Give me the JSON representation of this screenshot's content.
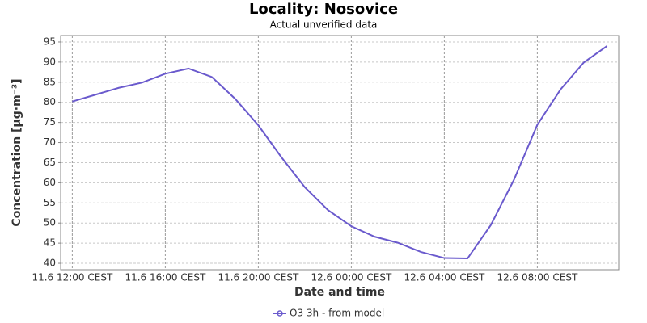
{
  "chart_data": {
    "type": "line",
    "title": "Locality: Nosovice",
    "subtitle": "Actual unverified data",
    "x_label": "Date and time",
    "y_label": "Concentration [µg·m⁻³]",
    "categories": [
      "11.6 12:00 CEST",
      null,
      null,
      null,
      "11.6 16:00 CEST",
      null,
      null,
      null,
      "11.6 20:00 CEST",
      null,
      null,
      null,
      "12.6 00:00 CEST",
      null,
      null,
      null,
      "12.6 04:00 CEST",
      null,
      null,
      null,
      "12.6 08:00 CEST",
      null,
      null,
      null
    ],
    "series": [
      {
        "name": "O3 3h - from model",
        "color": "#6a5acd",
        "values": [
          80.2,
          81.9,
          83.6,
          84.9,
          87.1,
          88.4,
          86.3,
          80.9,
          74.3,
          66.3,
          58.9,
          53.2,
          49.2,
          46.6,
          45.1,
          42.8,
          41.3,
          41.2,
          49.5,
          60.8,
          74.4,
          83.2,
          89.9,
          94.0
        ]
      }
    ],
    "ylim": [
      38.4,
      96.6
    ],
    "yticks": [
      40,
      45,
      50,
      55,
      60,
      65,
      70,
      75,
      80,
      85,
      90,
      95
    ],
    "grid": true,
    "legend": "bottom"
  }
}
